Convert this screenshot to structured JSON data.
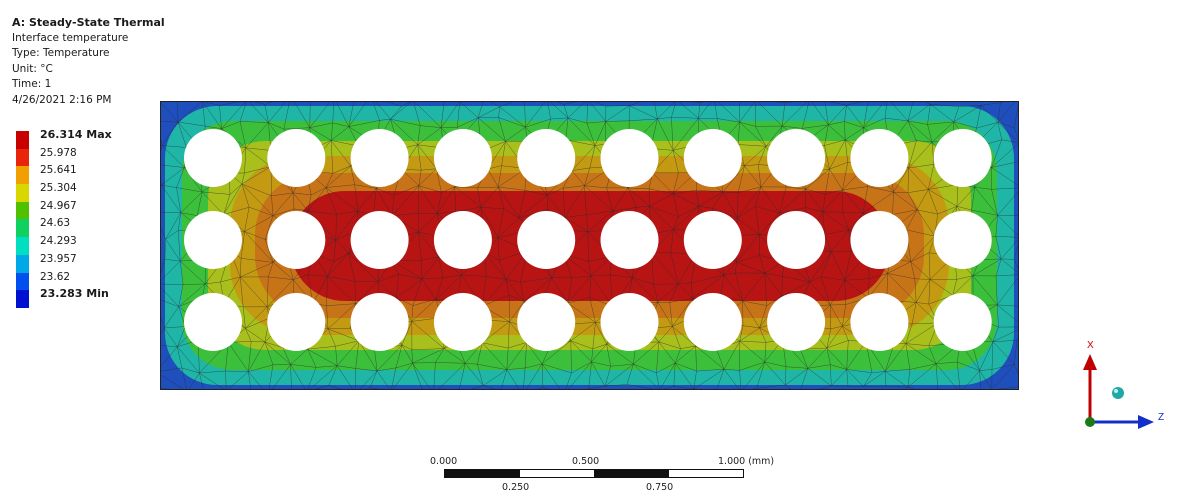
{
  "header": {
    "title": "A: Steady-State Thermal",
    "result_name": "Interface temperature",
    "type_line": "Type: Temperature",
    "unit_line": "Unit: °C",
    "time_line": "Time: 1",
    "date_line": "4/26/2021 2:16 PM"
  },
  "legend": {
    "entries": [
      {
        "label": "26.314 Max",
        "color": "#c80000",
        "bold": true
      },
      {
        "label": "25.978",
        "color": "#e8240a"
      },
      {
        "label": "25.641",
        "color": "#f0a000"
      },
      {
        "label": "25.304",
        "color": "#d8d800"
      },
      {
        "label": "24.967",
        "color": "#50c000"
      },
      {
        "label": "24.63",
        "color": "#10d060"
      },
      {
        "label": "24.293",
        "color": "#00e0c0"
      },
      {
        "label": "23.957",
        "color": "#00a8e8"
      },
      {
        "label": "23.62",
        "color": "#0050f0"
      },
      {
        "label": "23.283 Min",
        "color": "#0010d0",
        "bold": true
      }
    ]
  },
  "contour_colors": {
    "edge_blue": "#1f4fbd",
    "teal": "#1fb6a8",
    "green": "#3cbf3a",
    "yellow_green": "#a8bf1c",
    "olive": "#c49a12",
    "orange": "#c77418",
    "red": "#b81414",
    "mesh_lines": "#2a2a2a"
  },
  "scale_bar": {
    "top_labels": [
      "0.000",
      "0.500",
      "1.000 (mm)"
    ],
    "bottom_labels": [
      "0.250",
      "0.750"
    ]
  },
  "triad": {
    "x_label": "X",
    "z_label": "Z"
  }
}
